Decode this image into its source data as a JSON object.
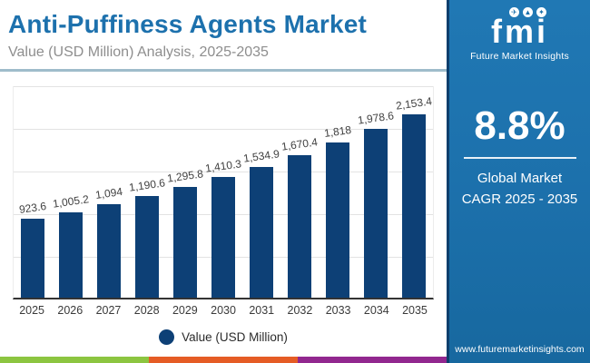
{
  "header": {
    "title": "Anti-Puffiness Agents Market",
    "subtitle": "Value (USD Million) Analysis, 2025-2035"
  },
  "logo": {
    "wordmark": "fmi",
    "tagline": "Future Market Insights"
  },
  "sidebar": {
    "cagr_value": "8.8%",
    "cagr_label_line1": "Global Market",
    "cagr_label_line2": "CAGR 2025 - 2035",
    "website": "www.futuremarketinsights.com"
  },
  "legend": {
    "label": "Value (USD Million)"
  },
  "chart_data": {
    "type": "bar",
    "title": "Anti-Puffiness Agents Market",
    "subtitle": "Value (USD Million) Analysis, 2025-2035",
    "categories": [
      "2025",
      "2026",
      "2027",
      "2028",
      "2029",
      "2030",
      "2031",
      "2032",
      "2033",
      "2034",
      "2035"
    ],
    "values": [
      923.6,
      1005.2,
      1094,
      1190.6,
      1295.8,
      1410.3,
      1534.9,
      1670.4,
      1818,
      1978.6,
      2153.4
    ],
    "value_labels": [
      "923.6",
      "1,005.2",
      "1,094",
      "1,190.6",
      "1,295.8",
      "1,410.3",
      "1,534.9",
      "1,670.4",
      "1,818",
      "1,978.6",
      "2,153.4"
    ],
    "series_name": "Value (USD Million)",
    "xlabel": "",
    "ylabel": "Value (USD Million)",
    "ylim": [
      0,
      2500
    ],
    "gridline_values": [
      500,
      1000,
      1500,
      2000,
      2500
    ],
    "grid": "horizontal only, no y-axis tick labels",
    "legend_position": "bottom center",
    "bar_color": "#0d4076"
  },
  "colors": {
    "title_blue": "#1d71ad",
    "subtitle_gray": "#8e8e8e",
    "bar_navy": "#0d4076",
    "sidebar_blue": "#1e73ae",
    "header_divider": "#9fbccb",
    "stripe_green": "#8cc540",
    "stripe_orange": "#e55c25",
    "stripe_purple": "#92278f"
  }
}
